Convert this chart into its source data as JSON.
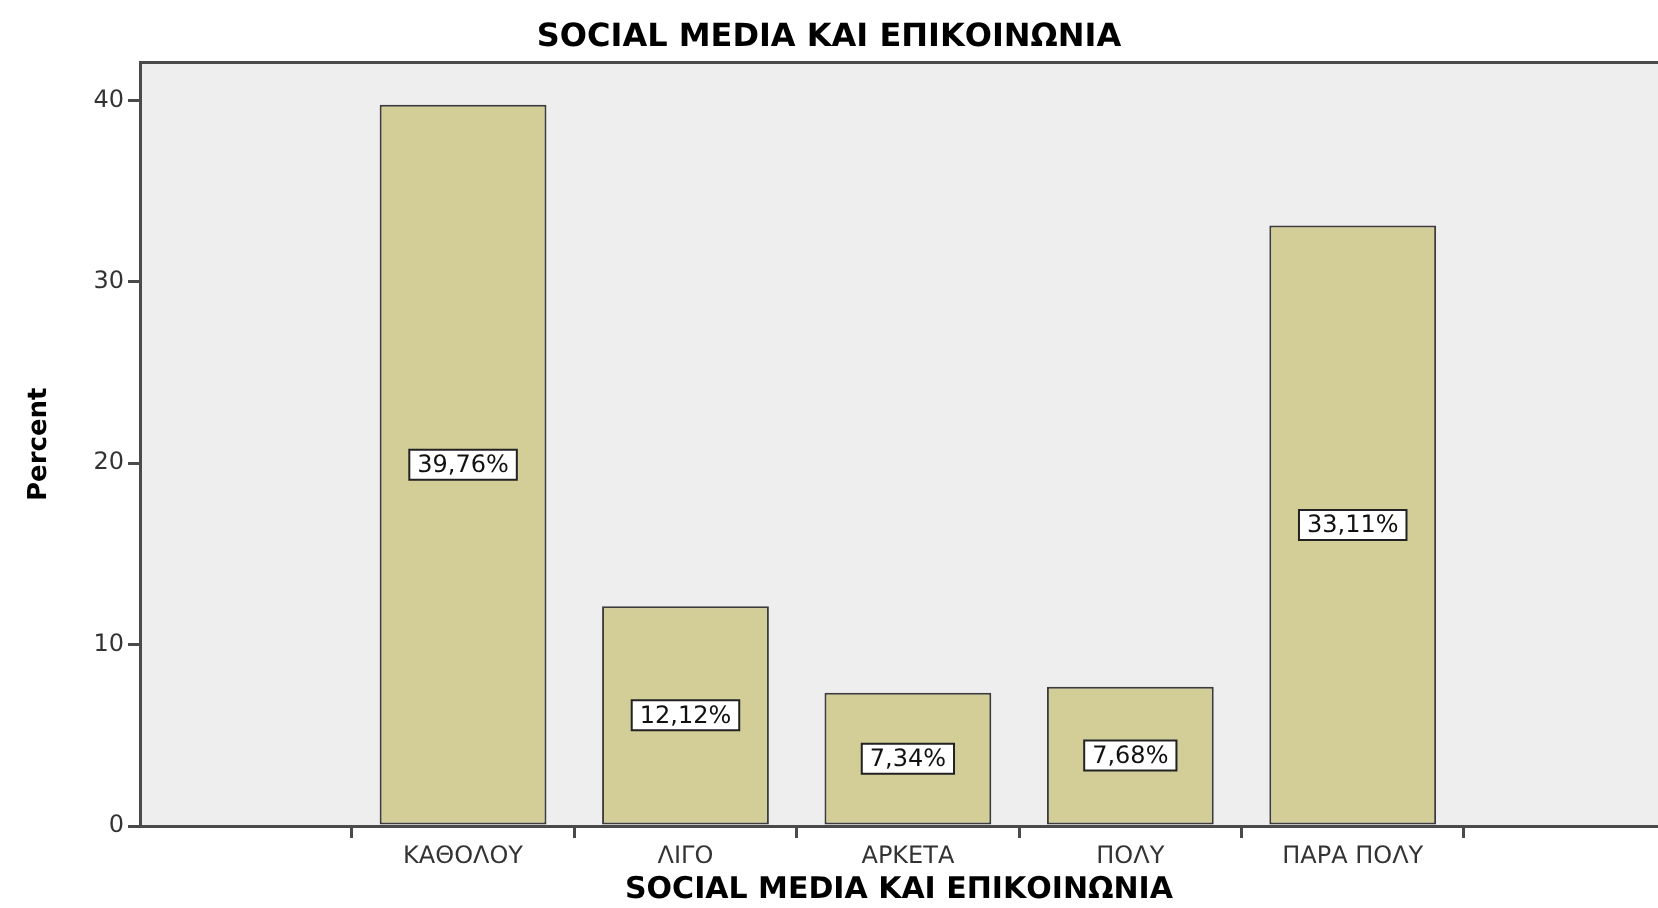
{
  "chart_data": {
    "type": "bar",
    "title": "SOCIAL MEDIA ΚΑΙ ΕΠΙΚΟΙΝΩΝΙΑ",
    "xlabel": "SOCIAL MEDIA ΚΑΙ ΕΠΙΚΟΙΝΩΝΙΑ",
    "ylabel": "Percent",
    "categories": [
      "ΚΑΘΟΛΟΥ",
      "ΛΙΓΟ",
      "ΑΡΚΕΤΑ",
      "ΠΟΛΥ",
      "ΠΑΡΑ ΠΟΛΥ"
    ],
    "values": [
      39.76,
      12.12,
      7.34,
      7.68,
      33.11
    ],
    "value_labels": [
      "39,76%",
      "12,12%",
      "7,34%",
      "7,68%",
      "33,11%"
    ],
    "color": "#d3ce98",
    "ylim": [
      0,
      42.1
    ],
    "yticks": [
      0,
      10,
      20,
      30,
      40
    ]
  }
}
